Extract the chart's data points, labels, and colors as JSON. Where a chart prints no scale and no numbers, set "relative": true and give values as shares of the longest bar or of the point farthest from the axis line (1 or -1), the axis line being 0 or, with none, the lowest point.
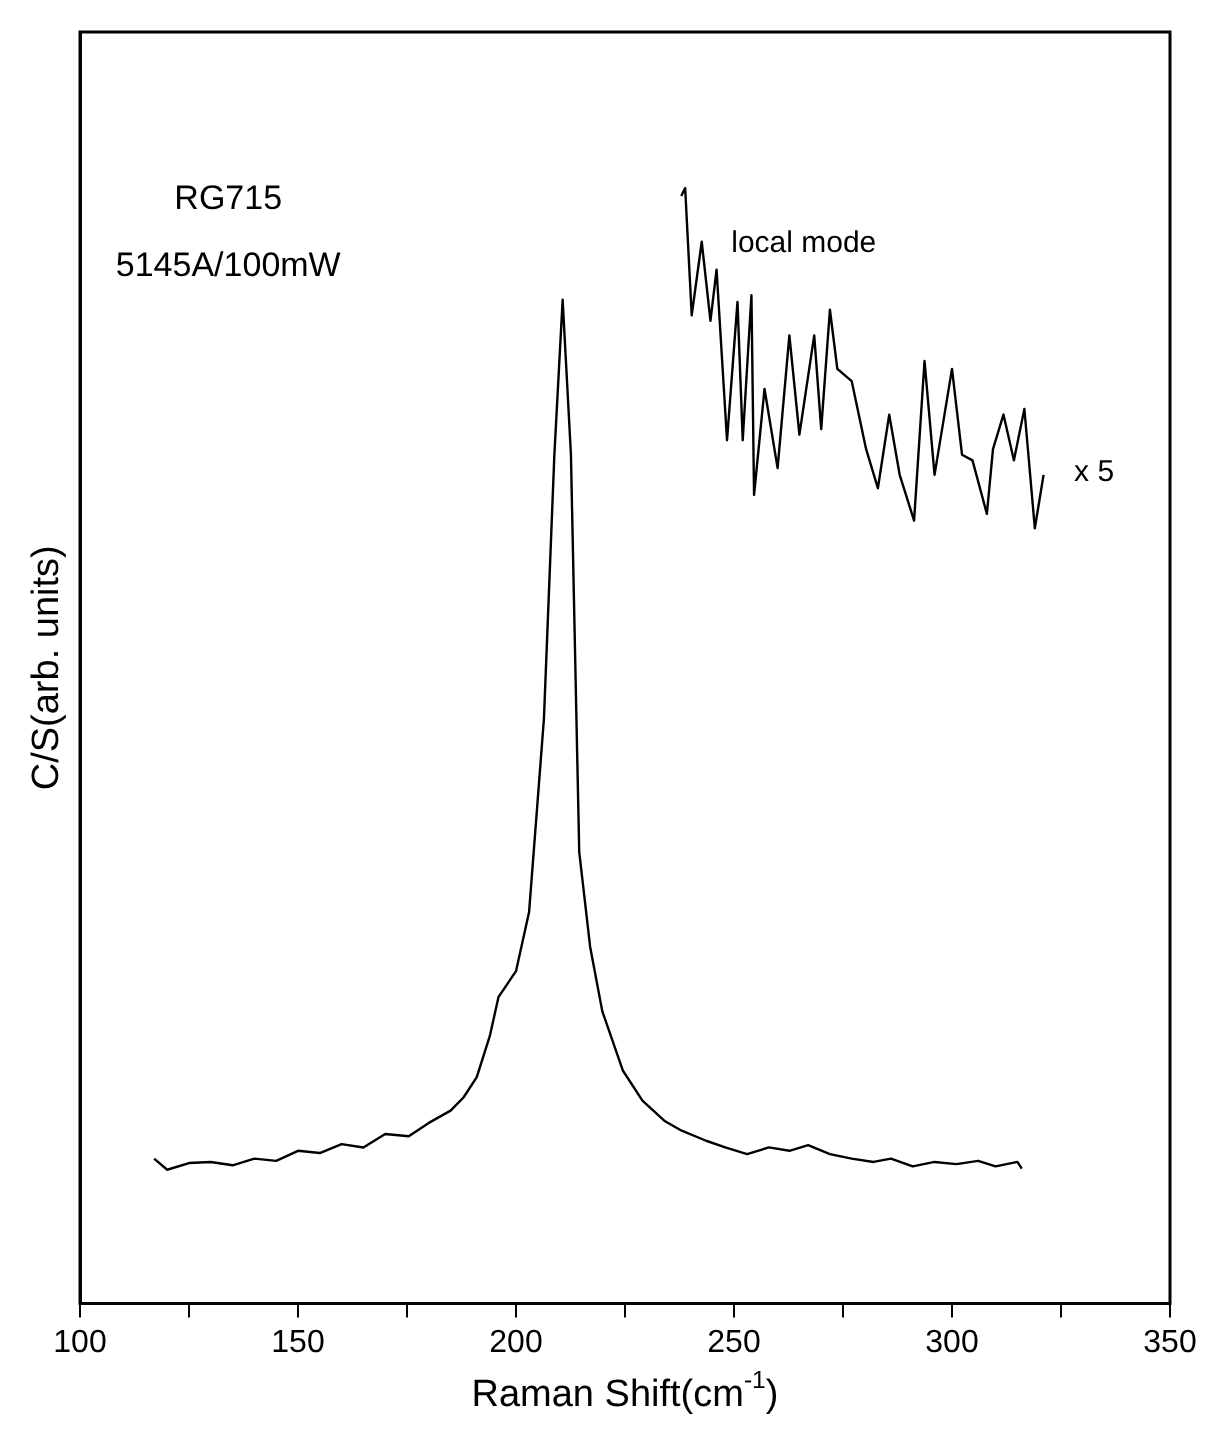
{
  "chart_data": {
    "type": "line",
    "relative": true,
    "xlabel": "Raman Shift(cm$^{-1}$)",
    "ylabel": "C/S(arb. units)",
    "annotations": [
      "RG715",
      "5145A/100mW",
      "local mode",
      "x 5"
    ],
    "xlim": [
      100,
      350
    ],
    "xticks": [
      100,
      {
        "value": 125,
        "label": null
      },
      150,
      {
        "value": 175,
        "label": null
      },
      200,
      {
        "value": 225,
        "label": null
      },
      250,
      {
        "value": 275,
        "label": null
      },
      300,
      {
        "value": 325,
        "label": null
      },
      350
    ],
    "tick_labels": "x",
    "grid": false,
    "legend": false,
    "marker": "none",
    "line_style": "solid",
    "series": [
      {
        "color": "#000000",
        "x": [
          117,
          120,
          125,
          130,
          135,
          140,
          145,
          150,
          155,
          160,
          165,
          170,
          175.4,
          180,
          185,
          188,
          191,
          194,
          196,
          200,
          203,
          206.4,
          208.8,
          210.7,
          212.6,
          214.5,
          217,
          219.8,
          224.5,
          229,
          234,
          238,
          243.6,
          248,
          253,
          258,
          262.7,
          267,
          272,
          277,
          282,
          286,
          291,
          296,
          301,
          306,
          310,
          315,
          316
        ],
        "values": [
          0.13,
          0.12,
          0.126,
          0.127,
          0.124,
          0.13,
          0.128,
          0.137,
          0.135,
          0.143,
          0.14,
          0.152,
          0.15,
          0.162,
          0.173,
          0.185,
          0.203,
          0.24,
          0.275,
          0.298,
          0.351,
          0.524,
          0.761,
          0.9,
          0.761,
          0.405,
          0.32,
          0.262,
          0.209,
          0.182,
          0.164,
          0.155,
          0.146,
          0.14,
          0.134,
          0.14,
          0.137,
          0.142,
          0.134,
          0.13,
          0.127,
          0.13,
          0.123,
          0.127,
          0.125,
          0.128,
          0.123,
          0.127,
          0.121
        ]
      },
      {
        "color": "#000000",
        "x": [
          237.9,
          238.8,
          240.3,
          242.6,
          244.6,
          246,
          248.4,
          250.8,
          252,
          254,
          254.6,
          257,
          260,
          262.7,
          265,
          268.4,
          270,
          272,
          273.7,
          277,
          280.3,
          283,
          285.6,
          288,
          291.3,
          293.7,
          296,
          300,
          302.3,
          304.7,
          308,
          309.4,
          311.8,
          314.2,
          316.6,
          319,
          321
        ],
        "values": [
          0.993,
          1.0,
          0.886,
          0.952,
          0.881,
          0.927,
          0.774,
          0.898,
          0.774,
          0.904,
          0.725,
          0.82,
          0.749,
          0.868,
          0.779,
          0.868,
          0.784,
          0.891,
          0.838,
          0.827,
          0.766,
          0.731,
          0.797,
          0.743,
          0.702,
          0.845,
          0.743,
          0.838,
          0.761,
          0.756,
          0.708,
          0.766,
          0.797,
          0.756,
          0.802,
          0.695,
          0.743
        ]
      }
    ]
  }
}
